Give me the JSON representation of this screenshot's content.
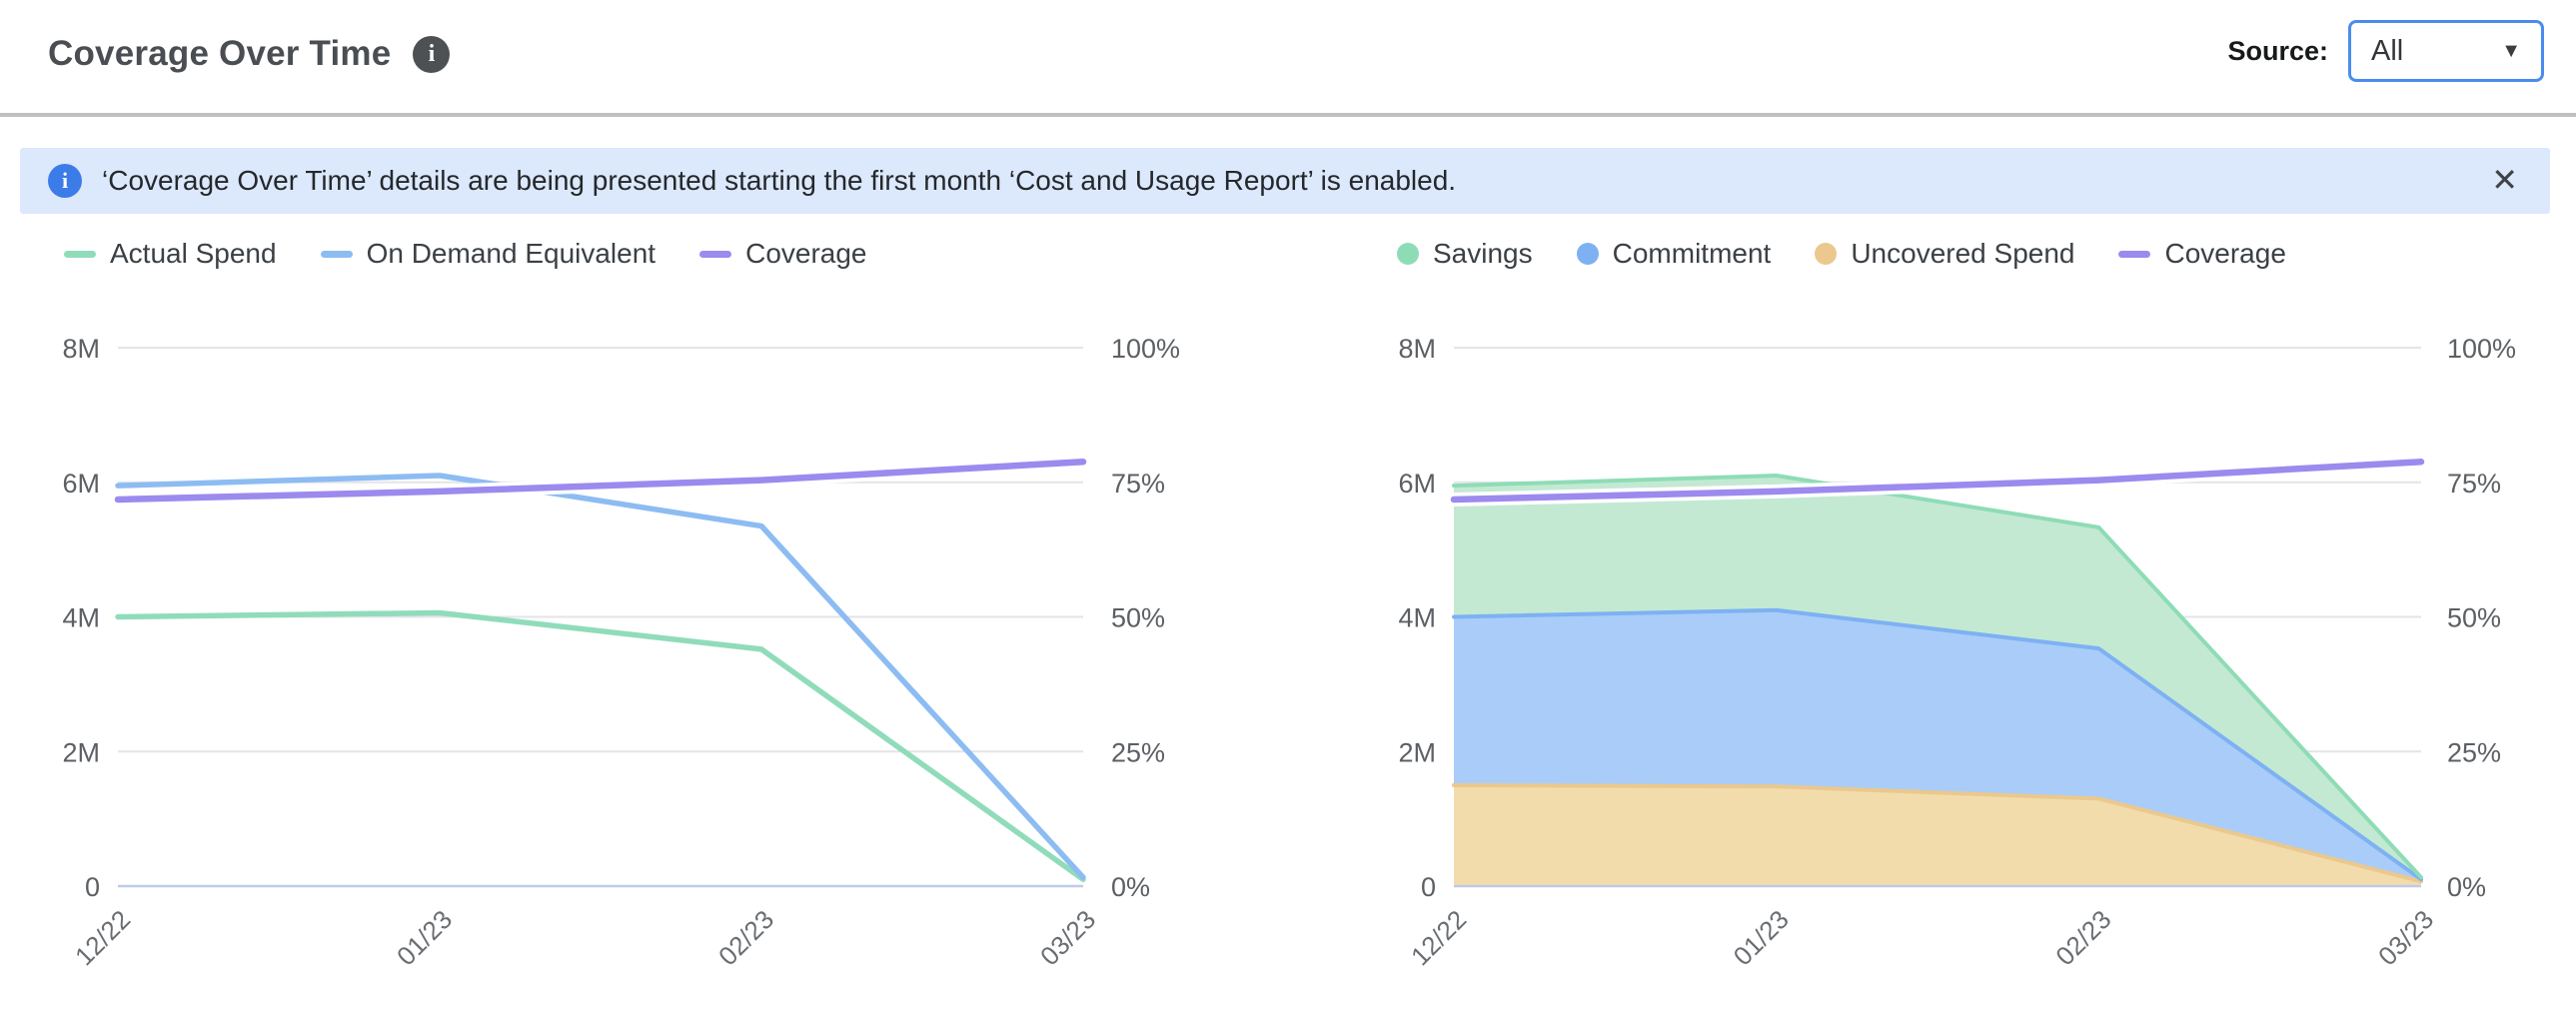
{
  "header": {
    "title": "Coverage Over Time",
    "source_label": "Source:",
    "source_value": "All"
  },
  "icons": {
    "info": "i",
    "close": "✕",
    "caret": "▼"
  },
  "banner": {
    "text": "‘Coverage Over Time’ details are being presented starting the first month ‘Cost and Usage Report’ is enabled."
  },
  "colors": {
    "grid": "#e4e4e8",
    "zero_axis": "#bfcbe8",
    "axis_text": "#5c6064",
    "x_tick_text": "#6a6e72",
    "legend_text": "#3b4045",
    "accent_blue": "#4a8cee",
    "banner_bg": "#dce8fb",
    "banner_icon": "#3b7ce8"
  },
  "chart_data": [
    {
      "type": "line",
      "title": "",
      "x": [
        "12/22",
        "01/23",
        "02/23",
        "03/23"
      ],
      "series": [
        {
          "name": "Actual Spend",
          "axis": "left",
          "swatch": "line",
          "color": "#90dcba",
          "values_millions": [
            4.0,
            4.06,
            3.52,
            0.1
          ]
        },
        {
          "name": "On Demand Equivalent",
          "axis": "left",
          "swatch": "line",
          "color": "#8cbcf2",
          "values_millions": [
            5.95,
            6.1,
            5.35,
            0.13
          ]
        },
        {
          "name": "Coverage",
          "axis": "right",
          "swatch": "line",
          "color": "#9c8aee",
          "halo": true,
          "values_percent": [
            71.8,
            73.3,
            75.4,
            78.8
          ]
        }
      ],
      "left_axis": {
        "ticks": [
          "0",
          "2M",
          "4M",
          "6M",
          "8M"
        ],
        "min": 0,
        "max_millions": 8
      },
      "right_axis": {
        "ticks": [
          "0%",
          "25%",
          "50%",
          "75%",
          "100%"
        ],
        "min": 0,
        "max_percent": 100
      },
      "grid": true,
      "legend_position": "top-left"
    },
    {
      "type": "area",
      "title": "",
      "x": [
        "12/22",
        "01/23",
        "02/23",
        "03/23"
      ],
      "series": [
        {
          "name": "Savings",
          "axis": "left",
          "swatch": "dot",
          "stack_index": 2,
          "color": "#c3e9d3",
          "edge": "#8edcb6",
          "values_millions": [
            1.95,
            2.0,
            1.8,
            0.03
          ]
        },
        {
          "name": "Commitment",
          "axis": "left",
          "swatch": "dot",
          "stack_index": 1,
          "color": "#a9cdf8",
          "edge": "#7eb1f3",
          "values_millions": [
            2.5,
            2.62,
            2.23,
            0.03
          ]
        },
        {
          "name": "Uncovered Spend",
          "axis": "left",
          "swatch": "dot",
          "stack_index": 0,
          "color": "#f3dcac",
          "edge": "#ebc88d",
          "values_millions": [
            1.5,
            1.48,
            1.3,
            0.07
          ]
        },
        {
          "name": "Coverage",
          "axis": "right",
          "swatch": "line",
          "color": "#9c8aee",
          "halo": true,
          "values_percent": [
            71.8,
            73.3,
            75.4,
            78.8
          ]
        }
      ],
      "left_axis": {
        "ticks": [
          "0",
          "2M",
          "4M",
          "6M",
          "8M"
        ],
        "min": 0,
        "max_millions": 8
      },
      "right_axis": {
        "ticks": [
          "0%",
          "25%",
          "50%",
          "75%",
          "100%"
        ],
        "min": 0,
        "max_percent": 100
      },
      "grid": true,
      "legend_position": "top-left",
      "stacked": true
    }
  ]
}
